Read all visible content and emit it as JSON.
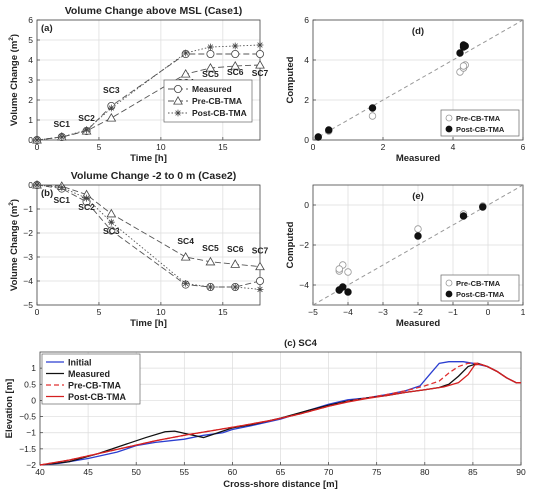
{
  "chart_data": [
    {
      "id": "a",
      "type": "line",
      "panel_label": "(a)",
      "title": "Volume Change above MSL (Case1)",
      "xlabel": "Time [h]",
      "ylabel": "Volume Change (m",
      "ylabel_sup": "2",
      "ylabel_tail": ")",
      "xlim": [
        0,
        18
      ],
      "ylim": [
        0,
        6
      ],
      "xticks": [
        0,
        5,
        10,
        15
      ],
      "yticks": [
        0,
        1,
        2,
        3,
        4,
        5,
        6
      ],
      "grid": true,
      "legend_position": "center-right",
      "stage_labels": [
        {
          "text": "SC1",
          "x": 2.0,
          "y": 0.65
        },
        {
          "text": "SC2",
          "x": 4.0,
          "y": 0.95
        },
        {
          "text": "SC3",
          "x": 6.0,
          "y": 2.35
        },
        {
          "text": "SC4",
          "x": 12.0,
          "y": 2.75
        },
        {
          "text": "SC5",
          "x": 14.0,
          "y": 3.15
        },
        {
          "text": "SC6",
          "x": 16.0,
          "y": 3.25
        },
        {
          "text": "SC7",
          "x": 18.0,
          "y": 3.2
        }
      ],
      "series": [
        {
          "name": "Measured",
          "marker": "circle",
          "dash": "6 3",
          "x": [
            0,
            2,
            4,
            6,
            12,
            14,
            16,
            18
          ],
          "y": [
            0,
            0.15,
            0.45,
            1.7,
            4.3,
            4.3,
            4.3,
            4.3
          ]
        },
        {
          "name": "Pre-CB-TMA",
          "marker": "triangle",
          "dash": "6 3",
          "x": [
            0,
            2,
            4,
            6,
            12,
            14,
            16,
            18
          ],
          "y": [
            0,
            0.15,
            0.45,
            1.1,
            3.3,
            3.6,
            3.7,
            3.75
          ]
        },
        {
          "name": "Post-CB-TMA",
          "marker": "star",
          "dash": "1.5 2",
          "x": [
            0,
            2,
            4,
            6,
            12,
            14,
            16,
            18
          ],
          "y": [
            0,
            0.15,
            0.5,
            1.6,
            4.35,
            4.65,
            4.7,
            4.75
          ]
        }
      ]
    },
    {
      "id": "b",
      "type": "line",
      "panel_label": "(b)",
      "title": "Volume Change -2 to 0 m (Case2)",
      "xlabel": "Time [h]",
      "ylabel": "Volume Change (m",
      "ylabel_sup": "2",
      "ylabel_tail": ")",
      "xlim": [
        0,
        18
      ],
      "ylim": [
        -5,
        0
      ],
      "xticks": [
        0,
        5,
        10,
        15
      ],
      "yticks": [
        -5,
        -4,
        -3,
        -2,
        -1,
        0
      ],
      "grid": true,
      "stage_labels": [
        {
          "text": "SC1",
          "x": 2.0,
          "y": -0.75
        },
        {
          "text": "SC2",
          "x": 4.0,
          "y": -1.05
        },
        {
          "text": "SC3",
          "x": 6.0,
          "y": -2.05
        },
        {
          "text": "SC4",
          "x": 12.0,
          "y": -2.45
        },
        {
          "text": "SC5",
          "x": 14.0,
          "y": -2.75
        },
        {
          "text": "SC6",
          "x": 16.0,
          "y": -2.8
        },
        {
          "text": "SC7",
          "x": 18.0,
          "y": -2.85
        }
      ],
      "series": [
        {
          "name": "Measured",
          "marker": "circle",
          "dash": "6 3",
          "x": [
            0,
            2,
            4,
            6,
            12,
            14,
            16,
            18
          ],
          "y": [
            0,
            -0.15,
            -0.7,
            -1.9,
            -4.15,
            -4.25,
            -4.25,
            -4.0
          ]
        },
        {
          "name": "Pre-CB-TMA",
          "marker": "triangle",
          "dash": "6 3",
          "x": [
            0,
            2,
            4,
            6,
            12,
            14,
            16,
            18
          ],
          "y": [
            0,
            -0.05,
            -0.4,
            -1.2,
            -3.0,
            -3.2,
            -3.3,
            -3.4
          ]
        },
        {
          "name": "Post-CB-TMA",
          "marker": "star",
          "dash": "1.5 2",
          "x": [
            0,
            2,
            4,
            6,
            12,
            14,
            16,
            18
          ],
          "y": [
            0,
            -0.1,
            -0.55,
            -1.55,
            -4.1,
            -4.25,
            -4.25,
            -4.35
          ]
        }
      ]
    },
    {
      "id": "d",
      "type": "scatter",
      "panel_label": "(d)",
      "xlabel": "Measured",
      "ylabel": "Computed",
      "xlim": [
        0,
        6
      ],
      "ylim": [
        0,
        6
      ],
      "xticks": [
        0,
        2,
        4,
        6
      ],
      "yticks": [
        0,
        2,
        4,
        6
      ],
      "grid": true,
      "legend_position": "bottom-right",
      "series": [
        {
          "name": "Pre-CB-TMA",
          "filled": false,
          "points": [
            [
              0.15,
              0.15
            ],
            [
              0.45,
              0.45
            ],
            [
              1.7,
              1.2
            ],
            [
              4.2,
              3.4
            ],
            [
              4.3,
              3.6
            ],
            [
              4.35,
              3.75
            ],
            [
              4.3,
              3.7
            ]
          ]
        },
        {
          "name": "Post-CB-TMA",
          "filled": true,
          "points": [
            [
              0.15,
              0.15
            ],
            [
              0.45,
              0.5
            ],
            [
              1.7,
              1.6
            ],
            [
              4.2,
              4.35
            ],
            [
              4.3,
              4.65
            ],
            [
              4.35,
              4.7
            ],
            [
              4.3,
              4.75
            ]
          ]
        }
      ]
    },
    {
      "id": "e",
      "type": "scatter",
      "panel_label": "(e)",
      "xlabel": "Measured",
      "ylabel": "Computed",
      "xlim": [
        -5,
        1
      ],
      "ylim": [
        -5,
        1
      ],
      "xticks": [
        -5,
        -4,
        -3,
        -2,
        -1,
        0,
        1
      ],
      "yticks": [
        -4,
        -2,
        0
      ],
      "grid": true,
      "legend_position": "bottom-right",
      "series": [
        {
          "name": "Pre-CB-TMA",
          "filled": false,
          "points": [
            [
              -4.25,
              -3.3
            ],
            [
              -4.15,
              -3.0
            ],
            [
              -4.0,
              -3.35
            ],
            [
              -4.25,
              -3.2
            ],
            [
              -2.0,
              -1.2
            ],
            [
              -0.7,
              -0.45
            ],
            [
              -0.15,
              -0.05
            ]
          ]
        },
        {
          "name": "Post-CB-TMA",
          "filled": true,
          "points": [
            [
              -4.25,
              -4.25
            ],
            [
              -4.15,
              -4.1
            ],
            [
              -4.0,
              -4.35
            ],
            [
              -4.25,
              -4.25
            ],
            [
              -2.0,
              -1.55
            ],
            [
              -0.7,
              -0.55
            ],
            [
              -0.15,
              -0.1
            ]
          ]
        }
      ]
    },
    {
      "id": "c",
      "type": "line",
      "panel_label": "(c) SC4",
      "xlabel": "Cross-shore distance [m]",
      "ylabel": "Elevation [m]",
      "xlim": [
        40,
        90
      ],
      "ylim": [
        -2,
        1.5
      ],
      "xticks": [
        40,
        45,
        50,
        55,
        60,
        65,
        70,
        75,
        80,
        85,
        90
      ],
      "yticks": [
        -2,
        -1.5,
        -1,
        -0.5,
        0,
        0.5,
        1
      ],
      "grid": true,
      "legend_position": "top-left",
      "series": [
        {
          "name": "Initial",
          "color": "#2b3ed0",
          "dash": "",
          "points": [
            [
              40,
              -2.0
            ],
            [
              42,
              -1.95
            ],
            [
              45,
              -1.8
            ],
            [
              48,
              -1.6
            ],
            [
              50,
              -1.4
            ],
            [
              52,
              -1.3
            ],
            [
              55,
              -1.2
            ],
            [
              57,
              -1.08
            ],
            [
              59,
              -1.0
            ],
            [
              60,
              -0.9
            ],
            [
              62,
              -0.78
            ],
            [
              65,
              -0.58
            ],
            [
              68,
              -0.3
            ],
            [
              70,
              -0.12
            ],
            [
              72,
              0.02
            ],
            [
              74,
              0.08
            ],
            [
              76,
              0.18
            ],
            [
              78,
              0.3
            ],
            [
              79.5,
              0.45
            ],
            [
              80.5,
              0.8
            ],
            [
              81.5,
              1.15
            ],
            [
              82.5,
              1.2
            ],
            [
              84,
              1.2
            ],
            [
              85,
              1.15
            ],
            [
              86.5,
              1.05
            ],
            [
              87.5,
              0.9
            ],
            [
              88.5,
              0.7
            ],
            [
              89.5,
              0.55
            ],
            [
              90,
              0.55
            ]
          ]
        },
        {
          "name": "Measured",
          "color": "#111111",
          "dash": "",
          "points": [
            [
              40,
              -2.0
            ],
            [
              43,
              -1.9
            ],
            [
              46,
              -1.65
            ],
            [
              49,
              -1.35
            ],
            [
              51,
              -1.15
            ],
            [
              53,
              -0.97
            ],
            [
              54,
              -0.95
            ],
            [
              55.5,
              -1.05
            ],
            [
              57,
              -1.15
            ],
            [
              58.5,
              -1.0
            ],
            [
              60,
              -0.85
            ],
            [
              62,
              -0.75
            ],
            [
              65,
              -0.55
            ],
            [
              68,
              -0.3
            ],
            [
              70,
              -0.15
            ],
            [
              72,
              -0.02
            ],
            [
              74,
              0.08
            ],
            [
              76,
              0.15
            ],
            [
              78,
              0.25
            ],
            [
              80,
              0.33
            ],
            [
              81.5,
              0.4
            ],
            [
              82.5,
              0.5
            ],
            [
              83.5,
              0.75
            ],
            [
              84.5,
              1.05
            ],
            [
              85.5,
              1.15
            ],
            [
              86.5,
              1.05
            ],
            [
              87.5,
              0.9
            ],
            [
              88.5,
              0.7
            ],
            [
              89.5,
              0.55
            ],
            [
              90,
              0.55
            ]
          ]
        },
        {
          "name": "Pre-CB-TMA",
          "color": "#e03030",
          "dash": "5 3",
          "points": [
            [
              40,
              -2.0
            ],
            [
              43,
              -1.85
            ],
            [
              46,
              -1.65
            ],
            [
              49,
              -1.45
            ],
            [
              52,
              -1.25
            ],
            [
              55,
              -1.08
            ],
            [
              58,
              -0.93
            ],
            [
              61,
              -0.78
            ],
            [
              64,
              -0.62
            ],
            [
              67,
              -0.42
            ],
            [
              70,
              -0.18
            ],
            [
              72,
              -0.03
            ],
            [
              74,
              0.08
            ],
            [
              76,
              0.18
            ],
            [
              78,
              0.3
            ],
            [
              80,
              0.45
            ],
            [
              81.5,
              0.6
            ],
            [
              82.5,
              0.85
            ],
            [
              83.5,
              1.05
            ],
            [
              84.5,
              1.15
            ],
            [
              85.5,
              1.15
            ],
            [
              86.5,
              1.05
            ],
            [
              87.5,
              0.9
            ],
            [
              88.5,
              0.7
            ],
            [
              89.5,
              0.55
            ],
            [
              90,
              0.55
            ]
          ]
        },
        {
          "name": "Post-CB-TMA",
          "color": "#d42020",
          "dash": "",
          "points": [
            [
              40,
              -2.0
            ],
            [
              43,
              -1.85
            ],
            [
              46,
              -1.65
            ],
            [
              49,
              -1.45
            ],
            [
              52,
              -1.25
            ],
            [
              55,
              -1.08
            ],
            [
              58,
              -0.93
            ],
            [
              61,
              -0.78
            ],
            [
              64,
              -0.62
            ],
            [
              67,
              -0.42
            ],
            [
              70,
              -0.18
            ],
            [
              72,
              -0.05
            ],
            [
              74,
              0.06
            ],
            [
              76,
              0.15
            ],
            [
              78,
              0.25
            ],
            [
              80,
              0.33
            ],
            [
              82,
              0.42
            ],
            [
              83.5,
              0.55
            ],
            [
              84.5,
              0.8
            ],
            [
              85.2,
              1.1
            ],
            [
              85.8,
              1.12
            ],
            [
              86.5,
              1.05
            ],
            [
              87.5,
              0.9
            ],
            [
              88.5,
              0.7
            ],
            [
              89.5,
              0.55
            ],
            [
              90,
              0.55
            ]
          ]
        }
      ]
    }
  ]
}
